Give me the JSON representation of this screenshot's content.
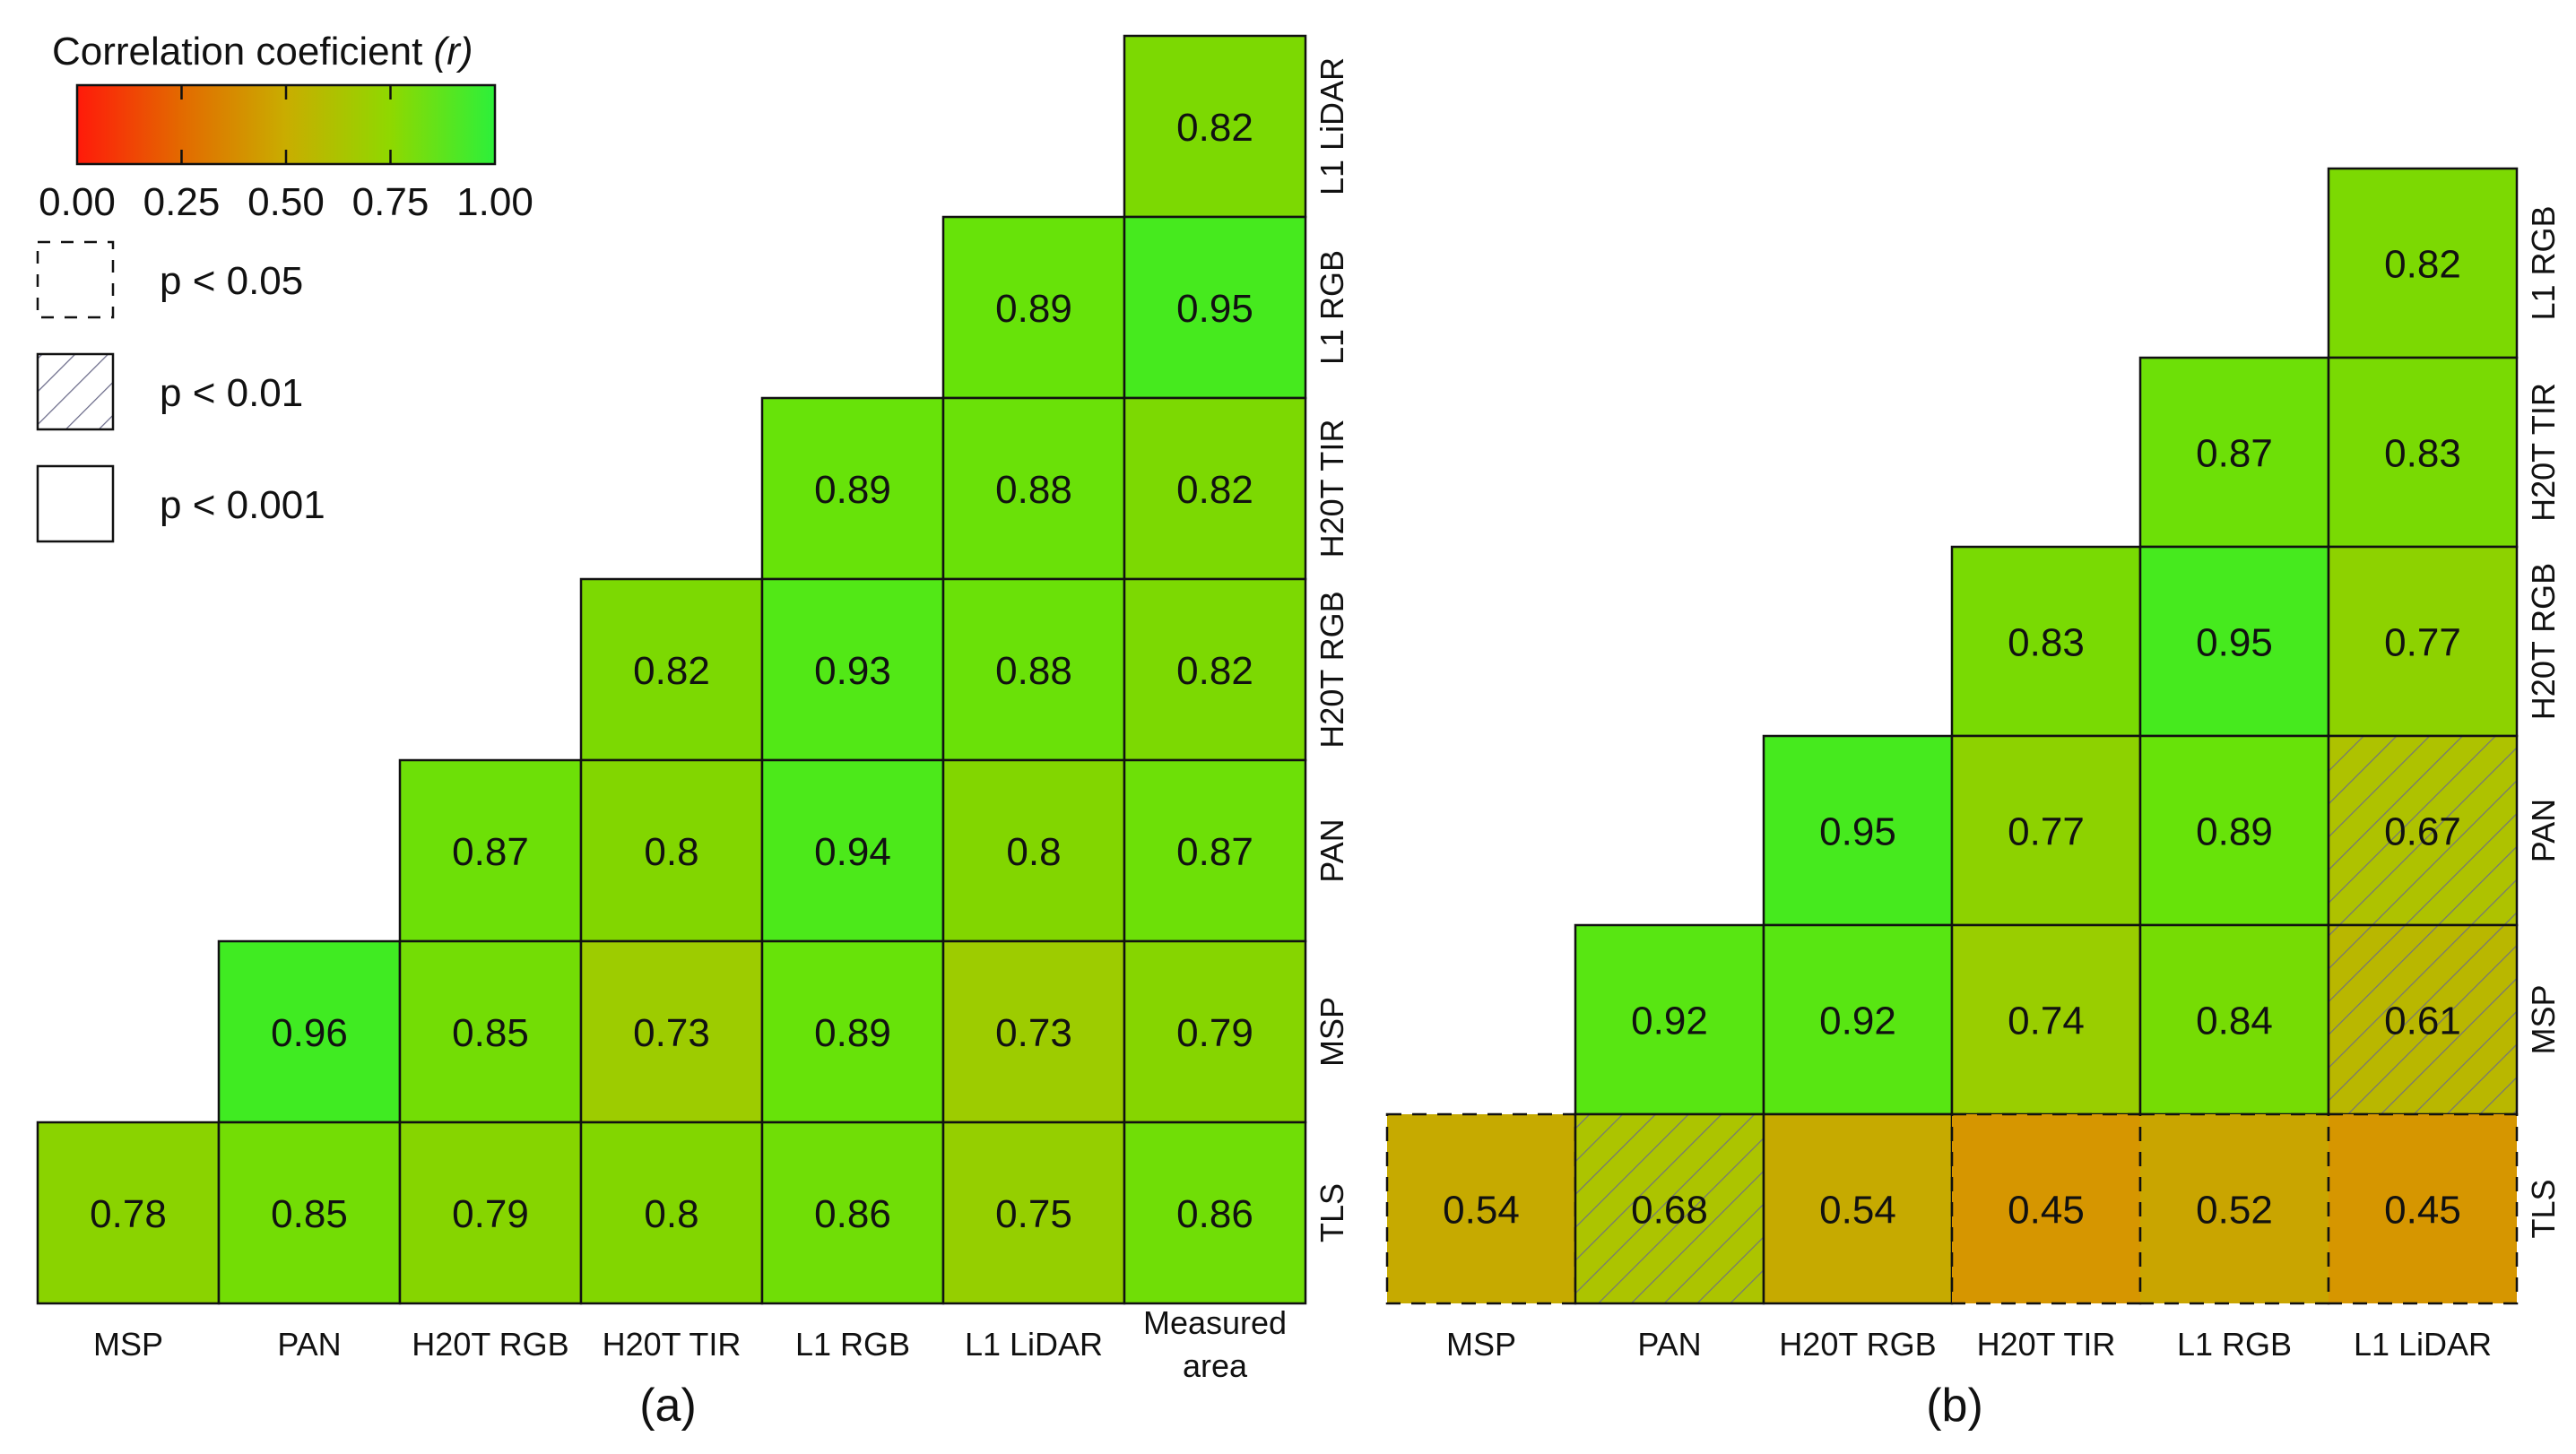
{
  "chart_data": [
    {
      "type": "heatmap",
      "panel_label": "(a)",
      "x_labels": [
        "MSP",
        "PAN",
        "H20T RGB",
        "H20T TIR",
        "L1 RGB",
        "L1 LiDAR",
        "Measured area"
      ],
      "y_labels": [
        "L1 LiDAR",
        "L1 RGB",
        "H20T TIR",
        "H20T RGB",
        "PAN",
        "MSP",
        "TLS"
      ],
      "cells": [
        {
          "row": 0,
          "col": 6,
          "value": 0.82,
          "label": "0.82",
          "sig": "p<0.001"
        },
        {
          "row": 1,
          "col": 5,
          "value": 0.89,
          "label": "0.89",
          "sig": "p<0.001"
        },
        {
          "row": 1,
          "col": 6,
          "value": 0.95,
          "label": "0.95",
          "sig": "p<0.001"
        },
        {
          "row": 2,
          "col": 4,
          "value": 0.89,
          "label": "0.89",
          "sig": "p<0.001"
        },
        {
          "row": 2,
          "col": 5,
          "value": 0.88,
          "label": "0.88",
          "sig": "p<0.001"
        },
        {
          "row": 2,
          "col": 6,
          "value": 0.82,
          "label": "0.82",
          "sig": "p<0.001"
        },
        {
          "row": 3,
          "col": 3,
          "value": 0.82,
          "label": "0.82",
          "sig": "p<0.001"
        },
        {
          "row": 3,
          "col": 4,
          "value": 0.93,
          "label": "0.93",
          "sig": "p<0.001"
        },
        {
          "row": 3,
          "col": 5,
          "value": 0.88,
          "label": "0.88",
          "sig": "p<0.001"
        },
        {
          "row": 3,
          "col": 6,
          "value": 0.82,
          "label": "0.82",
          "sig": "p<0.001"
        },
        {
          "row": 4,
          "col": 2,
          "value": 0.87,
          "label": "0.87",
          "sig": "p<0.001"
        },
        {
          "row": 4,
          "col": 3,
          "value": 0.8,
          "label": "0.8",
          "sig": "p<0.001"
        },
        {
          "row": 4,
          "col": 4,
          "value": 0.94,
          "label": "0.94",
          "sig": "p<0.001"
        },
        {
          "row": 4,
          "col": 5,
          "value": 0.8,
          "label": "0.8",
          "sig": "p<0.001"
        },
        {
          "row": 4,
          "col": 6,
          "value": 0.87,
          "label": "0.87",
          "sig": "p<0.001"
        },
        {
          "row": 5,
          "col": 1,
          "value": 0.96,
          "label": "0.96",
          "sig": "p<0.001"
        },
        {
          "row": 5,
          "col": 2,
          "value": 0.85,
          "label": "0.85",
          "sig": "p<0.001"
        },
        {
          "row": 5,
          "col": 3,
          "value": 0.73,
          "label": "0.73",
          "sig": "p<0.001"
        },
        {
          "row": 5,
          "col": 4,
          "value": 0.89,
          "label": "0.89",
          "sig": "p<0.001"
        },
        {
          "row": 5,
          "col": 5,
          "value": 0.73,
          "label": "0.73",
          "sig": "p<0.001"
        },
        {
          "row": 5,
          "col": 6,
          "value": 0.79,
          "label": "0.79",
          "sig": "p<0.001"
        },
        {
          "row": 6,
          "col": 0,
          "value": 0.78,
          "label": "0.78",
          "sig": "p<0.001"
        },
        {
          "row": 6,
          "col": 1,
          "value": 0.85,
          "label": "0.85",
          "sig": "p<0.001"
        },
        {
          "row": 6,
          "col": 2,
          "value": 0.79,
          "label": "0.79",
          "sig": "p<0.001"
        },
        {
          "row": 6,
          "col": 3,
          "value": 0.8,
          "label": "0.8",
          "sig": "p<0.001"
        },
        {
          "row": 6,
          "col": 4,
          "value": 0.86,
          "label": "0.86",
          "sig": "p<0.001"
        },
        {
          "row": 6,
          "col": 5,
          "value": 0.75,
          "label": "0.75",
          "sig": "p<0.001"
        },
        {
          "row": 6,
          "col": 6,
          "value": 0.86,
          "label": "0.86",
          "sig": "p<0.001"
        }
      ]
    },
    {
      "type": "heatmap",
      "panel_label": "(b)",
      "x_labels": [
        "MSP",
        "PAN",
        "H20T RGB",
        "H20T TIR",
        "L1 RGB",
        "L1 LiDAR"
      ],
      "y_labels": [
        "L1 RGB",
        "H20T TIR",
        "H20T RGB",
        "PAN",
        "MSP",
        "TLS"
      ],
      "cells": [
        {
          "row": 0,
          "col": 5,
          "value": 0.82,
          "label": "0.82",
          "sig": "p<0.001"
        },
        {
          "row": 1,
          "col": 4,
          "value": 0.87,
          "label": "0.87",
          "sig": "p<0.001"
        },
        {
          "row": 1,
          "col": 5,
          "value": 0.83,
          "label": "0.83",
          "sig": "p<0.001"
        },
        {
          "row": 2,
          "col": 3,
          "value": 0.83,
          "label": "0.83",
          "sig": "p<0.001"
        },
        {
          "row": 2,
          "col": 4,
          "value": 0.95,
          "label": "0.95",
          "sig": "p<0.001"
        },
        {
          "row": 2,
          "col": 5,
          "value": 0.77,
          "label": "0.77",
          "sig": "p<0.001"
        },
        {
          "row": 3,
          "col": 2,
          "value": 0.95,
          "label": "0.95",
          "sig": "p<0.001"
        },
        {
          "row": 3,
          "col": 3,
          "value": 0.77,
          "label": "0.77",
          "sig": "p<0.001"
        },
        {
          "row": 3,
          "col": 4,
          "value": 0.89,
          "label": "0.89",
          "sig": "p<0.001"
        },
        {
          "row": 3,
          "col": 5,
          "value": 0.67,
          "label": "0.67",
          "sig": "p<0.01"
        },
        {
          "row": 4,
          "col": 1,
          "value": 0.92,
          "label": "0.92",
          "sig": "p<0.001"
        },
        {
          "row": 4,
          "col": 2,
          "value": 0.92,
          "label": "0.92",
          "sig": "p<0.001"
        },
        {
          "row": 4,
          "col": 3,
          "value": 0.74,
          "label": "0.74",
          "sig": "p<0.001"
        },
        {
          "row": 4,
          "col": 4,
          "value": 0.84,
          "label": "0.84",
          "sig": "p<0.001"
        },
        {
          "row": 4,
          "col": 5,
          "value": 0.61,
          "label": "0.61",
          "sig": "p<0.01"
        },
        {
          "row": 5,
          "col": 0,
          "value": 0.54,
          "label": "0.54",
          "sig": "p<0.05"
        },
        {
          "row": 5,
          "col": 1,
          "value": 0.68,
          "label": "0.68",
          "sig": "p<0.01"
        },
        {
          "row": 5,
          "col": 2,
          "value": 0.54,
          "label": "0.54",
          "sig": "p<0.001"
        },
        {
          "row": 5,
          "col": 3,
          "value": 0.45,
          "label": "0.45",
          "sig": "p<0.05"
        },
        {
          "row": 5,
          "col": 4,
          "value": 0.52,
          "label": "0.52",
          "sig": "p<0.05"
        },
        {
          "row": 5,
          "col": 5,
          "value": 0.45,
          "label": "0.45",
          "sig": "p<0.05"
        }
      ]
    }
  ],
  "legend": {
    "title": "Correlation coeficient ",
    "title_italic": "(r)",
    "colorbar_ticks": [
      "0.00",
      "0.25",
      "0.50",
      "0.75",
      "1.00"
    ],
    "colorbar_colors": [
      "#ff1a0a",
      "#d97a00",
      "#c4b400",
      "#8ed400",
      "#2cf03a"
    ],
    "items": [
      {
        "style": "dashed",
        "label": "p < 0.05"
      },
      {
        "style": "hatched",
        "label": "p < 0.01"
      },
      {
        "style": "solid",
        "label": "p < 0.001"
      }
    ]
  }
}
